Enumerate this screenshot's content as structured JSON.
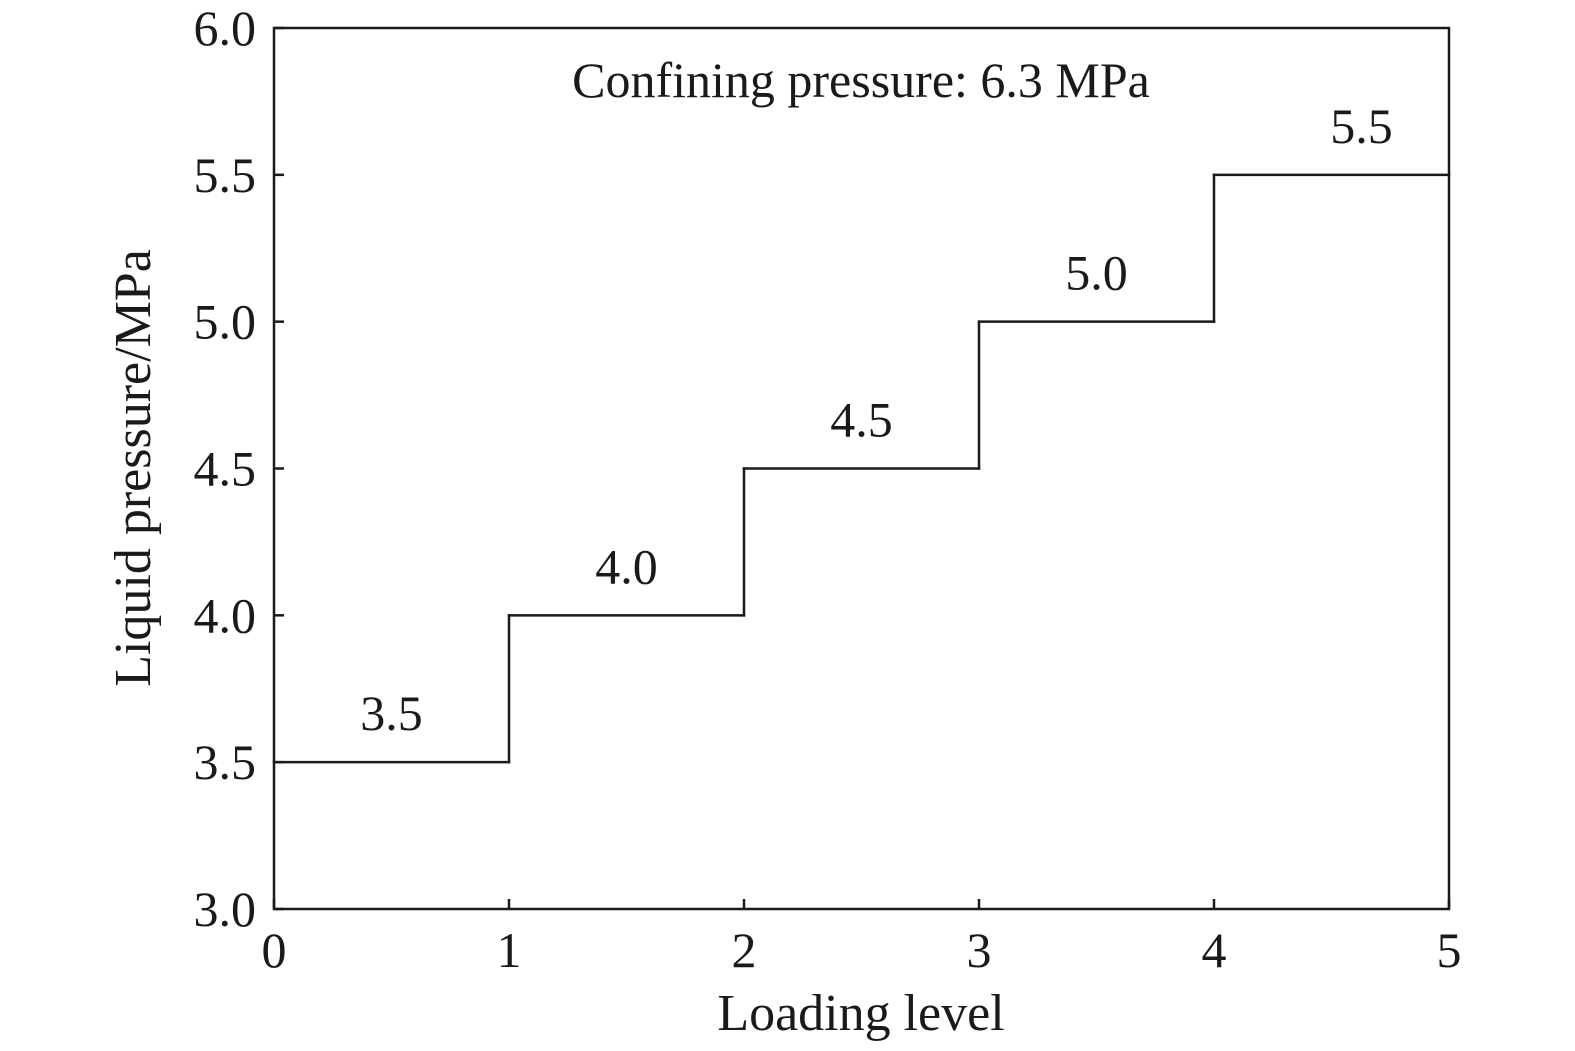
{
  "chart_data": {
    "type": "line",
    "step": true,
    "title": "",
    "xlabel": "Loading level",
    "ylabel": "Liquid pressure/MPa",
    "xlim": [
      0,
      5
    ],
    "ylim": [
      3.0,
      6.0
    ],
    "x_ticks": [
      0,
      1,
      2,
      3,
      4,
      5
    ],
    "x_tick_labels": [
      "0",
      "1",
      "2",
      "3",
      "4",
      "5"
    ],
    "y_ticks": [
      3.0,
      3.5,
      4.0,
      4.5,
      5.0,
      5.5,
      6.0
    ],
    "y_tick_labels": [
      "3.0",
      "3.5",
      "4.0",
      "4.5",
      "5.0",
      "5.5",
      "6.0"
    ],
    "grid": false,
    "annotation": "Confining pressure: 6.3 MPa",
    "series": [
      {
        "steps": [
          {
            "x_start": 0,
            "x_end": 1,
            "value": 3.5,
            "label": "3.5"
          },
          {
            "x_start": 1,
            "x_end": 2,
            "value": 4.0,
            "label": "4.0"
          },
          {
            "x_start": 2,
            "x_end": 3,
            "value": 4.5,
            "label": "4.5"
          },
          {
            "x_start": 3,
            "x_end": 4,
            "value": 5.0,
            "label": "5.0"
          },
          {
            "x_start": 4,
            "x_end": 5,
            "value": 5.5,
            "label": "5.5"
          }
        ]
      }
    ],
    "colors": {
      "line": "#1a1a1a",
      "axis": "#1a1a1a"
    }
  }
}
